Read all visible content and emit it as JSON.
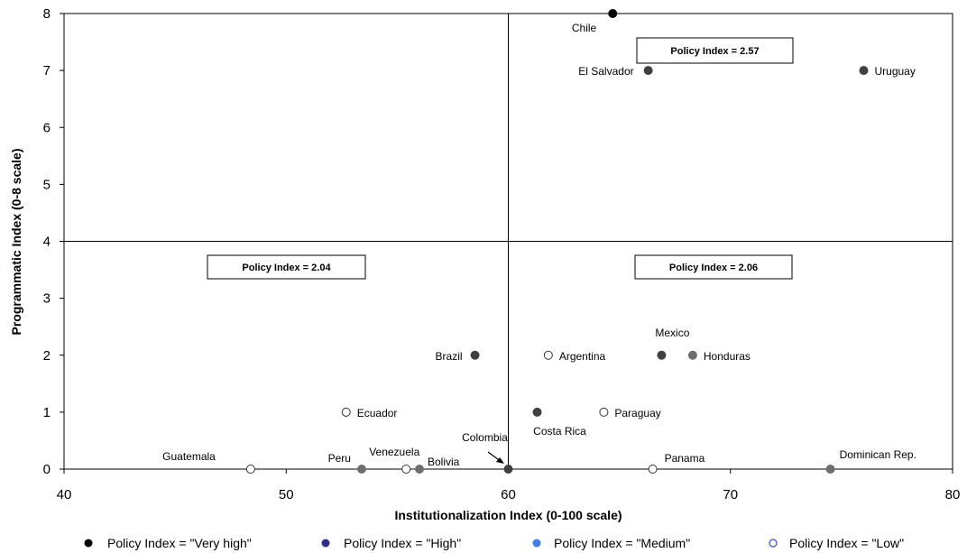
{
  "chart_data": {
    "type": "scatter",
    "xlabel": "Institutionalization Index (0-100 scale)",
    "ylabel": "Programmatic Index (0-8 scale)",
    "xlim": [
      40,
      80
    ],
    "ylim": [
      0,
      8
    ],
    "xticks": [
      "40",
      "50",
      "60",
      "70",
      "80"
    ],
    "yticks": [
      "0",
      "1",
      "2",
      "3",
      "4",
      "5",
      "6",
      "7",
      "8"
    ],
    "grid": false,
    "quadrant_lines": {
      "x": 60,
      "y": 4
    },
    "legend_position": "bottom",
    "legend": [
      {
        "label": "Policy Index = \"Very high\"",
        "style": "very-high"
      },
      {
        "label": "Policy Index = \"High\"",
        "style": "high"
      },
      {
        "label": "Policy Index = \"Medium\"",
        "style": "medium"
      },
      {
        "label": "Policy Index = \"Low\"",
        "style": "low"
      }
    ],
    "annotations": [
      {
        "text": "Policy Index = 2.57"
      },
      {
        "text": "Policy Index = 2.04"
      },
      {
        "text": "Policy Index = 2.06"
      }
    ],
    "points": [
      {
        "country": "Chile",
        "x": 64.7,
        "y": 8,
        "category": "very-high"
      },
      {
        "country": "El Salvador",
        "x": 66.3,
        "y": 7,
        "category": "high"
      },
      {
        "country": "Uruguay",
        "x": 76.0,
        "y": 7,
        "category": "high"
      },
      {
        "country": "Brazil",
        "x": 58.5,
        "y": 2,
        "category": "high"
      },
      {
        "country": "Mexico",
        "x": 66.9,
        "y": 2,
        "category": "high"
      },
      {
        "country": "Honduras",
        "x": 68.3,
        "y": 2,
        "category": "medium"
      },
      {
        "country": "Argentina",
        "x": 61.8,
        "y": 2,
        "category": "low"
      },
      {
        "country": "Ecuador",
        "x": 52.7,
        "y": 1,
        "category": "low"
      },
      {
        "country": "Costa Rica",
        "x": 61.3,
        "y": 1,
        "category": "high"
      },
      {
        "country": "Paraguay",
        "x": 64.3,
        "y": 1,
        "category": "low"
      },
      {
        "country": "Guatemala",
        "x": 48.4,
        "y": 0,
        "category": "low"
      },
      {
        "country": "Peru",
        "x": 53.4,
        "y": 0,
        "category": "medium"
      },
      {
        "country": "Venezuela",
        "x": 55.4,
        "y": 0,
        "category": "low"
      },
      {
        "country": "Bolivia",
        "x": 56.0,
        "y": 0,
        "category": "medium"
      },
      {
        "country": "Colombia",
        "x": 60.0,
        "y": 0,
        "category": "high"
      },
      {
        "country": "Panama",
        "x": 66.5,
        "y": 0,
        "category": "low"
      },
      {
        "country": "Dominican Rep.",
        "x": 74.5,
        "y": 0,
        "category": "medium"
      }
    ],
    "colors": {
      "very-high": "#000000",
      "high": "#404040",
      "medium": "#6e6e6e",
      "low": "#ffffff",
      "legend_high": "#2e2e8c",
      "legend_medium": "#3b7fe6",
      "legend_low_stroke": "#2a4fd1"
    }
  }
}
